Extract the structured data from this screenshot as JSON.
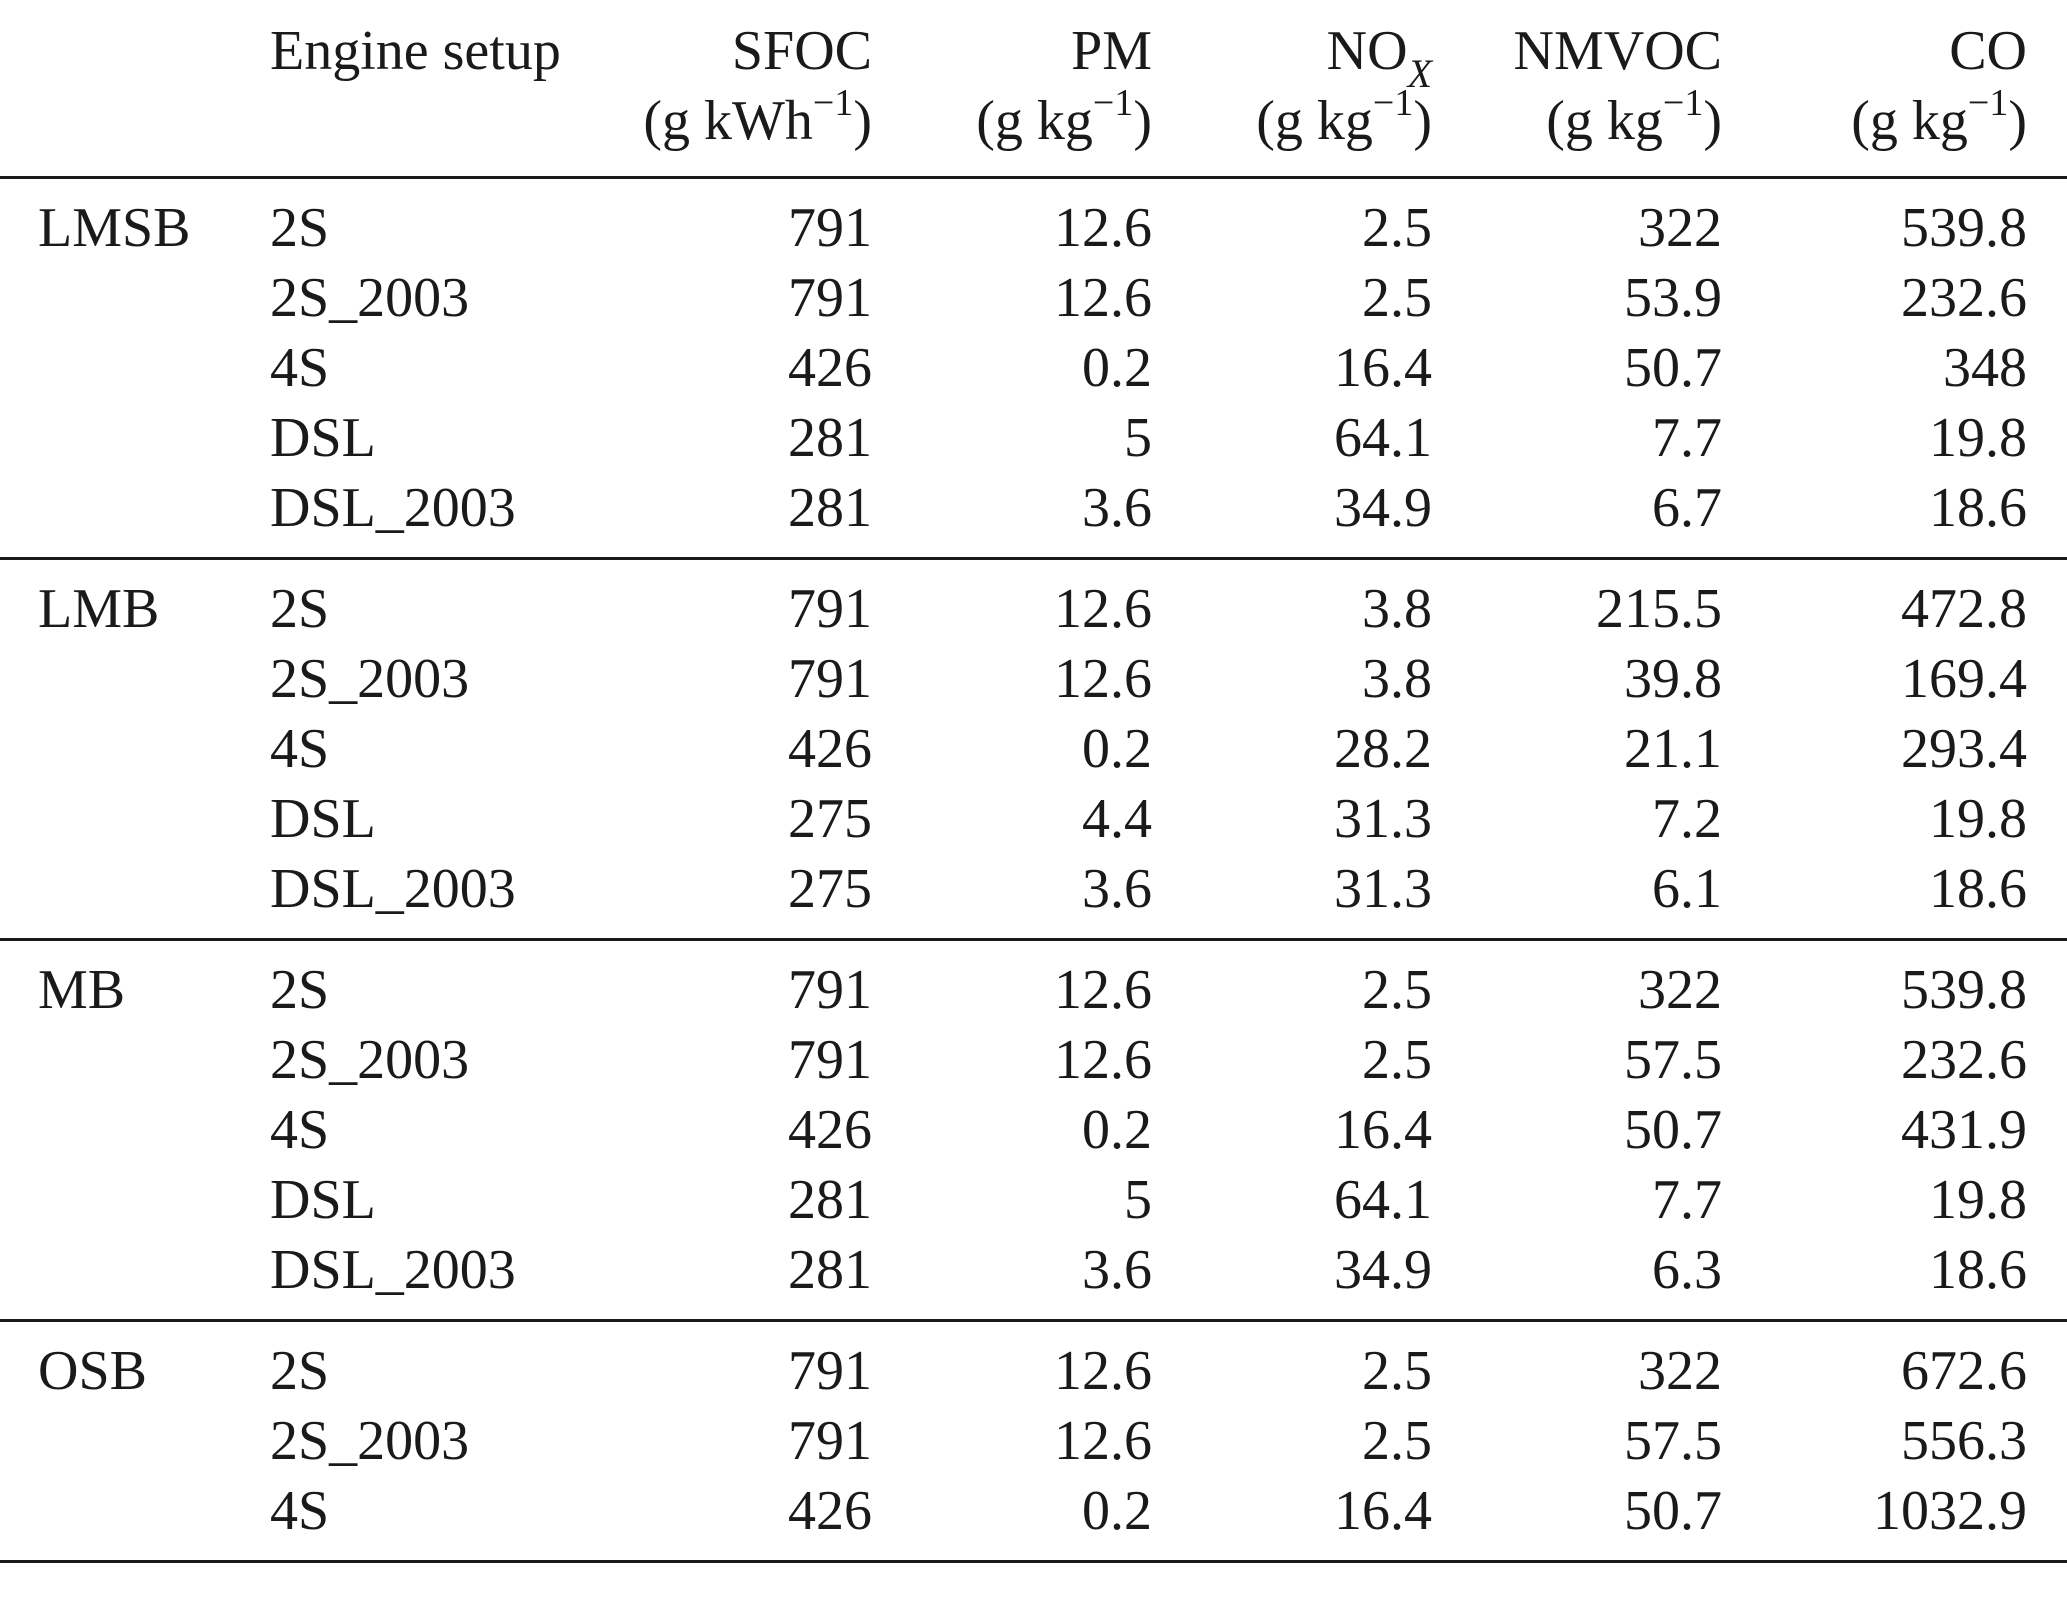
{
  "headers": {
    "group": "",
    "setup": "Engine setup",
    "sfoc": {
      "name": "SFOC",
      "unit_pre": "(g kWh",
      "unit_sup": "−1",
      "unit_post": ")"
    },
    "pm": {
      "name": "PM",
      "unit_pre": "(g kg",
      "unit_sup": "−1",
      "unit_post": ")"
    },
    "nox": {
      "name_main": "NO",
      "name_sub": "X",
      "unit_pre": "(g kg",
      "unit_sup": "−1",
      "unit_post": ")"
    },
    "nmvoc": {
      "name": "NMVOC",
      "unit_pre": "(g kg",
      "unit_sup": "−1",
      "unit_post": ")"
    },
    "co": {
      "name": "CO",
      "unit_pre": "(g kg",
      "unit_sup": "−1",
      "unit_post": ")"
    }
  },
  "groups": [
    {
      "name": "LMSB",
      "rows": [
        {
          "setup": "2S",
          "sfoc": "791",
          "pm": "12.6",
          "nox": "2.5",
          "nmvoc": "322",
          "co": "539.8"
        },
        {
          "setup": "2S_2003",
          "sfoc": "791",
          "pm": "12.6",
          "nox": "2.5",
          "nmvoc": "53.9",
          "co": "232.6"
        },
        {
          "setup": "4S",
          "sfoc": "426",
          "pm": "0.2",
          "nox": "16.4",
          "nmvoc": "50.7",
          "co": "348"
        },
        {
          "setup": "DSL",
          "sfoc": "281",
          "pm": "5",
          "nox": "64.1",
          "nmvoc": "7.7",
          "co": "19.8"
        },
        {
          "setup": "DSL_2003",
          "sfoc": "281",
          "pm": "3.6",
          "nox": "34.9",
          "nmvoc": "6.7",
          "co": "18.6"
        }
      ]
    },
    {
      "name": "LMB",
      "rows": [
        {
          "setup": "2S",
          "sfoc": "791",
          "pm": "12.6",
          "nox": "3.8",
          "nmvoc": "215.5",
          "co": "472.8"
        },
        {
          "setup": "2S_2003",
          "sfoc": "791",
          "pm": "12.6",
          "nox": "3.8",
          "nmvoc": "39.8",
          "co": "169.4"
        },
        {
          "setup": "4S",
          "sfoc": "426",
          "pm": "0.2",
          "nox": "28.2",
          "nmvoc": "21.1",
          "co": "293.4"
        },
        {
          "setup": "DSL",
          "sfoc": "275",
          "pm": "4.4",
          "nox": "31.3",
          "nmvoc": "7.2",
          "co": "19.8"
        },
        {
          "setup": "DSL_2003",
          "sfoc": "275",
          "pm": "3.6",
          "nox": "31.3",
          "nmvoc": "6.1",
          "co": "18.6"
        }
      ]
    },
    {
      "name": "MB",
      "rows": [
        {
          "setup": "2S",
          "sfoc": "791",
          "pm": "12.6",
          "nox": "2.5",
          "nmvoc": "322",
          "co": "539.8"
        },
        {
          "setup": "2S_2003",
          "sfoc": "791",
          "pm": "12.6",
          "nox": "2.5",
          "nmvoc": "57.5",
          "co": "232.6"
        },
        {
          "setup": "4S",
          "sfoc": "426",
          "pm": "0.2",
          "nox": "16.4",
          "nmvoc": "50.7",
          "co": "431.9"
        },
        {
          "setup": "DSL",
          "sfoc": "281",
          "pm": "5",
          "nox": "64.1",
          "nmvoc": "7.7",
          "co": "19.8"
        },
        {
          "setup": "DSL_2003",
          "sfoc": "281",
          "pm": "3.6",
          "nox": "34.9",
          "nmvoc": "6.3",
          "co": "18.6"
        }
      ]
    },
    {
      "name": "OSB",
      "rows": [
        {
          "setup": "2S",
          "sfoc": "791",
          "pm": "12.6",
          "nox": "2.5",
          "nmvoc": "322",
          "co": "672.6"
        },
        {
          "setup": "2S_2003",
          "sfoc": "791",
          "pm": "12.6",
          "nox": "2.5",
          "nmvoc": "57.5",
          "co": "556.3"
        },
        {
          "setup": "4S",
          "sfoc": "426",
          "pm": "0.2",
          "nox": "16.4",
          "nmvoc": "50.7",
          "co": "1032.9"
        }
      ]
    }
  ]
}
